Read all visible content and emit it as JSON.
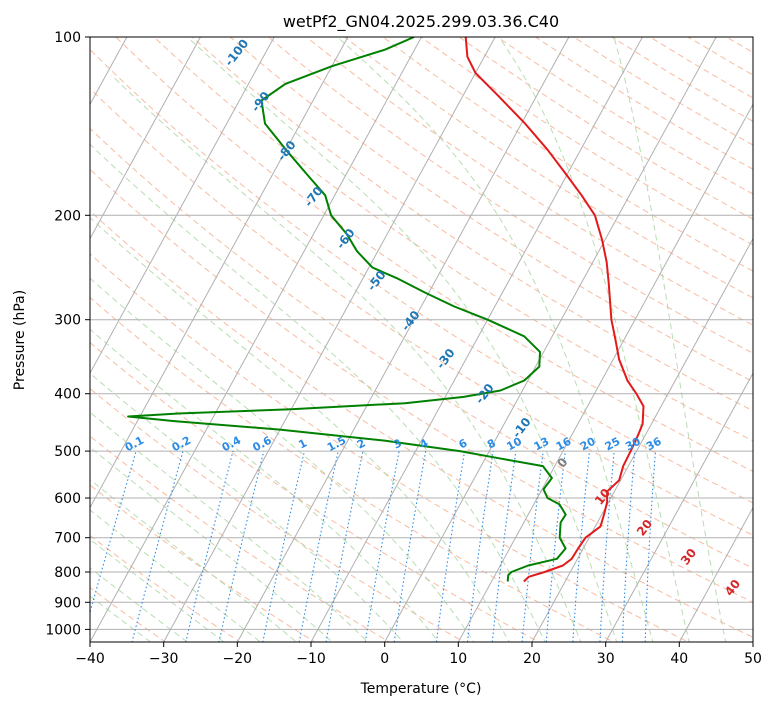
{
  "chart_data": {
    "type": "line",
    "chart_kind": "skew-t log-p diagram",
    "title": "wetPf2_GN04.2025.299.03.36.C40",
    "xlabel": "Temperature (°C)",
    "ylabel": "Pressure (hPa)",
    "xlim": [
      -40,
      50
    ],
    "ylim": [
      1050,
      100
    ],
    "y_scale": "log",
    "x_ticks": [
      -40,
      -30,
      -20,
      -10,
      0,
      10,
      20,
      30,
      40,
      50
    ],
    "y_ticks": [
      1000,
      900,
      800,
      700,
      600,
      500,
      400,
      300,
      200,
      100
    ],
    "grid": true,
    "legend": "none",
    "series": [
      {
        "role": "temperature",
        "color": "#e31a1c",
        "points": [
          {
            "p": 830,
            "t": 14.4
          },
          {
            "p": 815,
            "t": 14.7
          },
          {
            "p": 800,
            "t": 16.5
          },
          {
            "p": 780,
            "t": 18.5
          },
          {
            "p": 760,
            "t": 19.2
          },
          {
            "p": 730,
            "t": 19.3
          },
          {
            "p": 700,
            "t": 19.5
          },
          {
            "p": 670,
            "t": 20.7
          },
          {
            "p": 640,
            "t": 20.3
          },
          {
            "p": 610,
            "t": 19.8
          },
          {
            "p": 585,
            "t": 19.0
          },
          {
            "p": 560,
            "t": 19.8
          },
          {
            "p": 530,
            "t": 19.3
          },
          {
            "p": 500,
            "t": 19.2
          },
          {
            "p": 470,
            "t": 19.0
          },
          {
            "p": 450,
            "t": 18.8
          },
          {
            "p": 420,
            "t": 17.6
          },
          {
            "p": 400,
            "t": 15.7
          },
          {
            "p": 380,
            "t": 13.5
          },
          {
            "p": 350,
            "t": 10.8
          },
          {
            "p": 320,
            "t": 8.5
          },
          {
            "p": 300,
            "t": 6.8
          },
          {
            "p": 280,
            "t": 5.3
          },
          {
            "p": 260,
            "t": 3.7
          },
          {
            "p": 240,
            "t": 1.9
          },
          {
            "p": 220,
            "t": -0.4
          },
          {
            "p": 200,
            "t": -3.2
          },
          {
            "p": 185,
            "t": -6.5
          },
          {
            "p": 170,
            "t": -10.3
          },
          {
            "p": 155,
            "t": -14.5
          },
          {
            "p": 140,
            "t": -19.5
          },
          {
            "p": 125,
            "t": -25.5
          },
          {
            "p": 115,
            "t": -30.0
          },
          {
            "p": 108,
            "t": -32.3
          },
          {
            "p": 100,
            "t": -34.0
          }
        ]
      },
      {
        "role": "dewpoint",
        "color": "#008000",
        "points": [
          {
            "p": 830,
            "t": 12.2
          },
          {
            "p": 810,
            "t": 11.8
          },
          {
            "p": 800,
            "t": 12.0
          },
          {
            "p": 780,
            "t": 13.8
          },
          {
            "p": 760,
            "t": 17.2
          },
          {
            "p": 730,
            "t": 17.6
          },
          {
            "p": 700,
            "t": 16.0
          },
          {
            "p": 660,
            "t": 15.0
          },
          {
            "p": 640,
            "t": 15.1
          },
          {
            "p": 615,
            "t": 13.5
          },
          {
            "p": 600,
            "t": 11.4
          },
          {
            "p": 580,
            "t": 10.2
          },
          {
            "p": 555,
            "t": 10.5
          },
          {
            "p": 530,
            "t": 8.4
          },
          {
            "p": 515,
            "t": 2.2
          },
          {
            "p": 500,
            "t": -4.0
          },
          {
            "p": 480,
            "t": -15.0
          },
          {
            "p": 460,
            "t": -30.0
          },
          {
            "p": 445,
            "t": -45.0
          },
          {
            "p": 437,
            "t": -51.6
          },
          {
            "p": 432,
            "t": -45.0
          },
          {
            "p": 425,
            "t": -30.0
          },
          {
            "p": 415,
            "t": -15.0
          },
          {
            "p": 405,
            "t": -7.5
          },
          {
            "p": 395,
            "t": -3.0
          },
          {
            "p": 380,
            "t": -0.5
          },
          {
            "p": 360,
            "t": 0.5
          },
          {
            "p": 340,
            "t": -0.5
          },
          {
            "p": 320,
            "t": -3.8
          },
          {
            "p": 300,
            "t": -10.0
          },
          {
            "p": 285,
            "t": -15.5
          },
          {
            "p": 270,
            "t": -20.5
          },
          {
            "p": 255,
            "t": -25.5
          },
          {
            "p": 245,
            "t": -29.5
          },
          {
            "p": 230,
            "t": -32.8
          },
          {
            "p": 215,
            "t": -35.5
          },
          {
            "p": 200,
            "t": -39.0
          },
          {
            "p": 185,
            "t": -41.3
          },
          {
            "p": 170,
            "t": -45.5
          },
          {
            "p": 155,
            "t": -50.0
          },
          {
            "p": 140,
            "t": -54.8
          },
          {
            "p": 128,
            "t": -57.0
          },
          {
            "p": 120,
            "t": -55.0
          },
          {
            "p": 112,
            "t": -50.0
          },
          {
            "p": 105,
            "t": -44.0
          },
          {
            "p": 100,
            "t": -41.0
          }
        ]
      }
    ],
    "dry_adiabat_labels": [
      "-100",
      "-90",
      "-80",
      "-70",
      "-60",
      "-50",
      "-40",
      "-30",
      "-20",
      "-10",
      "0",
      "10",
      "20",
      "30",
      "40"
    ],
    "mixing_ratio_labels": [
      "0.1",
      "0.2",
      "0.4",
      "0.6",
      "1",
      "1.5",
      "2",
      "3",
      "4",
      "6",
      "8",
      "10",
      "13",
      "16",
      "20",
      "25",
      "30",
      "36"
    ]
  },
  "colors": {
    "isobar": "#b0b0b0",
    "isotherm": "#b0b0b0",
    "dry_adiabat": "#f4a582",
    "moist_adiabat": "#a6d5a1",
    "mixing_ratio": "#2b8ce6",
    "label_cold": "#1f77b4",
    "label_warm": "#d62728",
    "label_zero": "#7f7f7f"
  }
}
